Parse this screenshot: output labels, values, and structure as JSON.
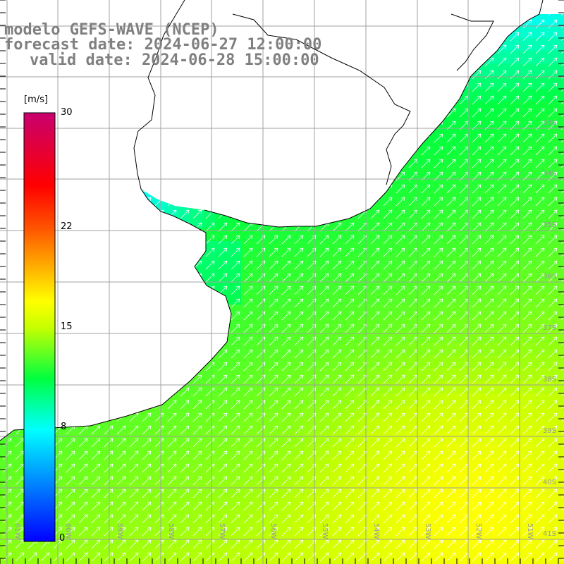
{
  "title": {
    "line1": "modelo GEFS-WAVE (NCEP)",
    "line2": "forecast date: 2024-06-27 12:00:00",
    "line3": "valid date: 2024-06-28 15:00:00"
  },
  "colorbar": {
    "unit": "[m/s]",
    "min": 0,
    "max": 30,
    "tick_labels": [
      "30",
      "22",
      "15",
      "8",
      "0"
    ],
    "tick_values": [
      30,
      22,
      15,
      8,
      0
    ]
  },
  "axes": {
    "lat_labels": [
      "33S",
      "34S",
      "35S",
      "36S",
      "37S",
      "38S",
      "39S",
      "40S",
      "41S"
    ],
    "lon_labels": [
      "61W",
      "60W",
      "59W",
      "58W",
      "57W",
      "56W",
      "55W",
      "54W",
      "53W",
      "52W",
      "51W"
    ]
  },
  "field": {
    "variable": "wind speed",
    "coastline_color": "#000000",
    "grid_color": "#a0a0a0",
    "arrow_color": "#ffffff",
    "wind_direction": "north-east"
  }
}
